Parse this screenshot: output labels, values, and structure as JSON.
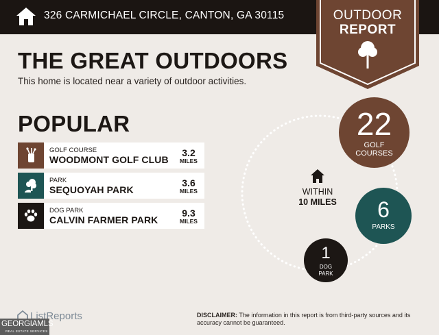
{
  "header": {
    "address": "326 CARMICHAEL CIRCLE, CANTON, GA 30115",
    "icon": "house-icon",
    "background": "#1b1512"
  },
  "badge": {
    "line1": "OUTDOOR",
    "line2": "REPORT",
    "icon": "tree-icon",
    "color": "#6e4532"
  },
  "intro": {
    "title": "THE GREAT OUTDOORS",
    "subtitle": "This home is located near a variety of outdoor activities."
  },
  "popular": {
    "title": "POPULAR",
    "items": [
      {
        "category": "GOLF COURSE",
        "name": "WOODMONT GOLF CLUB",
        "distance": "3.2",
        "unit": "MILES",
        "icon": "golf-bag-icon",
        "color": "#6e4532"
      },
      {
        "category": "PARK",
        "name": "SEQUOYAH PARK",
        "distance": "3.6",
        "unit": "MILES",
        "icon": "park-tree-icon",
        "color": "#1e5554"
      },
      {
        "category": "DOG PARK",
        "name": "CALVIN FARMER PARK",
        "distance": "9.3",
        "unit": "MILES",
        "icon": "paw-icon",
        "color": "#1c1714"
      }
    ]
  },
  "radius": {
    "line1": "WITHIN",
    "line2": "10 MILES",
    "icon": "house-icon"
  },
  "counts": {
    "golf": {
      "count": "22",
      "label1": "GOLF",
      "label2": "COURSES",
      "color": "#6e4532"
    },
    "parks": {
      "count": "6",
      "label": "PARKS",
      "color": "#1e5554"
    },
    "dog": {
      "count": "1",
      "label1": "DOG",
      "label2": "PARK",
      "color": "#1c1714"
    }
  },
  "footer": {
    "brand": "ListReports",
    "mls_line1": "GEORGIAMLS",
    "mls_line2": "REAL ESTATE SERVICES",
    "disclaimer_label": "DISCLAIMER:",
    "disclaimer_text": " The information in this report is from third-party sources and its accuracy cannot be guaranteed."
  }
}
